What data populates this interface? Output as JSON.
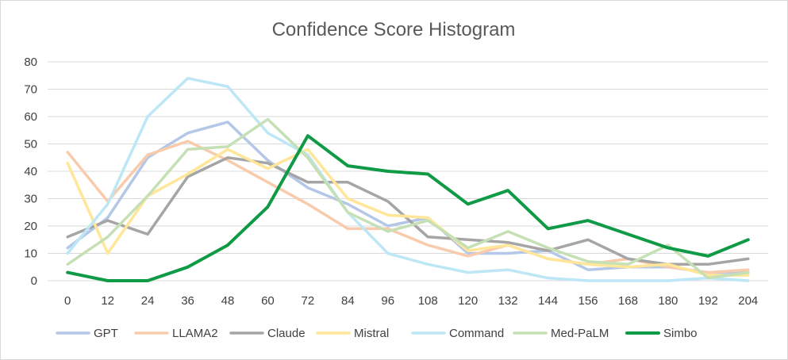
{
  "chart_data": {
    "type": "line",
    "title": "Confidence Score Histogram",
    "xlabel": "",
    "ylabel": "",
    "x": [
      0,
      12,
      24,
      36,
      48,
      60,
      72,
      84,
      96,
      108,
      120,
      132,
      144,
      156,
      168,
      180,
      192,
      204
    ],
    "ylim": [
      0,
      80
    ],
    "yticks": [
      0,
      10,
      20,
      30,
      40,
      50,
      60,
      70,
      80
    ],
    "grid": true,
    "legend_position": "bottom",
    "series": [
      {
        "name": "GPT",
        "color": "#b4c7e7",
        "values": [
          12,
          23,
          45,
          54,
          58,
          44,
          34,
          28,
          20,
          23,
          10,
          10,
          11,
          4,
          5,
          5,
          3,
          3
        ]
      },
      {
        "name": "LLAMA2",
        "color": "#f8cbad",
        "values": [
          47,
          29,
          46,
          51,
          44,
          36,
          28,
          19,
          19,
          13,
          9,
          13,
          8,
          6,
          8,
          5,
          3,
          4
        ]
      },
      {
        "name": "Claude",
        "color": "#a5a5a5",
        "values": [
          16,
          22,
          17,
          38,
          45,
          43,
          36,
          36,
          29,
          16,
          15,
          14,
          11,
          15,
          8,
          6,
          6,
          8
        ]
      },
      {
        "name": "Mistral",
        "color": "#ffe699",
        "values": [
          43,
          10,
          31,
          39,
          48,
          41,
          48,
          30,
          24,
          23,
          11,
          13,
          8,
          6,
          5,
          6,
          2,
          2
        ]
      },
      {
        "name": "Command",
        "color": "#bde7f6",
        "values": [
          10,
          28,
          60,
          74,
          71,
          54,
          46,
          25,
          10,
          6,
          3,
          4,
          1,
          0,
          0,
          0,
          1,
          0
        ]
      },
      {
        "name": "Med-PaLM",
        "color": "#c5e0b4",
        "values": [
          6,
          16,
          31,
          48,
          49,
          59,
          45,
          25,
          18,
          22,
          12,
          18,
          12,
          7,
          6,
          13,
          1,
          3
        ]
      },
      {
        "name": "Simbo",
        "color": "#0f9a45",
        "values": [
          3,
          0,
          0,
          5,
          13,
          27,
          53,
          42,
          40,
          39,
          28,
          33,
          19,
          22,
          17,
          12,
          9,
          15
        ]
      }
    ]
  }
}
